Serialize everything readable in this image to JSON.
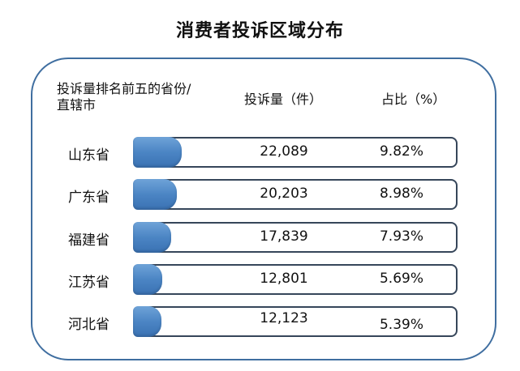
{
  "title": "消费者投诉区域分布",
  "headers": {
    "rank": "投诉量排名前五的省份/直辖市",
    "count": "投诉量（件）",
    "share": "占比（%）"
  },
  "chart_data": {
    "type": "bar",
    "title": "消费者投诉区域分布",
    "categories": [
      "山东省",
      "广东省",
      "福建省",
      "江苏省",
      "河北省"
    ],
    "values": [
      22089,
      20203,
      17839,
      12801,
      12123
    ],
    "labels": [
      "22,089",
      "20,203",
      "17,839",
      "12,801",
      "12,123"
    ],
    "shares": [
      "9.82%",
      "8.98%",
      "7.93%",
      "5.69%",
      "5.39%"
    ],
    "bar_color": "#4b85c4"
  }
}
